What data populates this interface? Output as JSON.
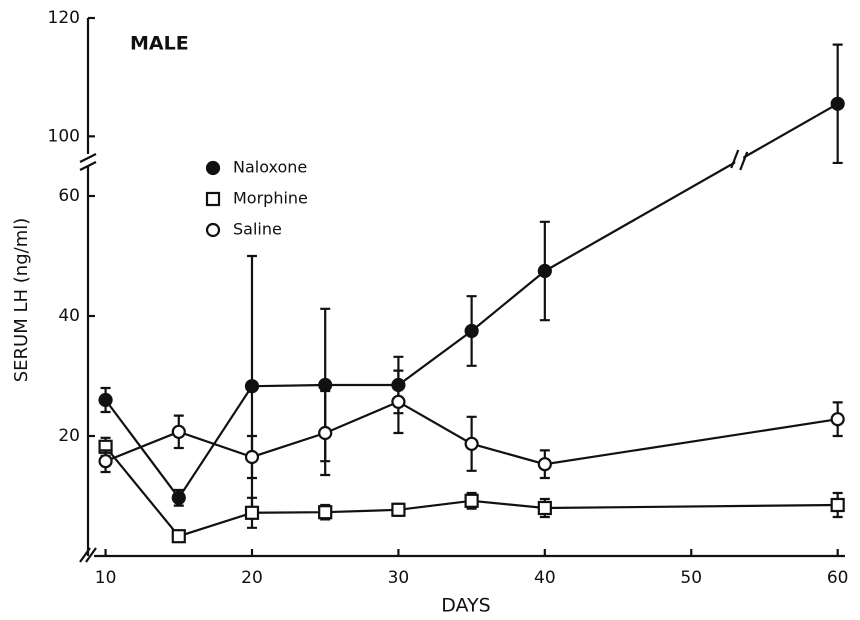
{
  "chart_data": {
    "type": "line",
    "title": "MALE",
    "xlabel": "DAYS",
    "ylabel": "SERUM LH (ng/ml)",
    "x": [
      10,
      15,
      20,
      25,
      30,
      35,
      40,
      60
    ],
    "xlim": [
      8.8,
      60.5
    ],
    "xticks": [
      10,
      20,
      30,
      40,
      50,
      60
    ],
    "ylim": [
      0,
      120
    ],
    "ybreak": [
      66,
      96
    ],
    "yticks": [
      20,
      40,
      60,
      100,
      120
    ],
    "legend": "upper left",
    "series": [
      {
        "name": "Naloxone",
        "marker": "filled-circle",
        "color": "#111111",
        "values": [
          26,
          9.7,
          28.3,
          28.5,
          28.5,
          37.5,
          47.5,
          105.5
        ],
        "errors": [
          2,
          1.3,
          21.7,
          12.7,
          4.7,
          5.8,
          8.2,
          10
        ]
      },
      {
        "name": "Morphine",
        "marker": "open-square",
        "color": "#111111",
        "values": [
          18.2,
          3.3,
          7.2,
          7.3,
          7.7,
          9.2,
          8,
          8.5
        ],
        "errors": [
          1.5,
          0.8,
          2.5,
          1.2,
          1,
          1.3,
          1.5,
          2
        ]
      },
      {
        "name": "Saline",
        "marker": "open-circle",
        "color": "#111111",
        "values": [
          15.8,
          20.7,
          16.5,
          20.5,
          25.7,
          18.7,
          15.3,
          22.8
        ],
        "errors": [
          1.8,
          2.7,
          3.5,
          7,
          5.2,
          4.5,
          2.3,
          2.8
        ]
      }
    ]
  }
}
